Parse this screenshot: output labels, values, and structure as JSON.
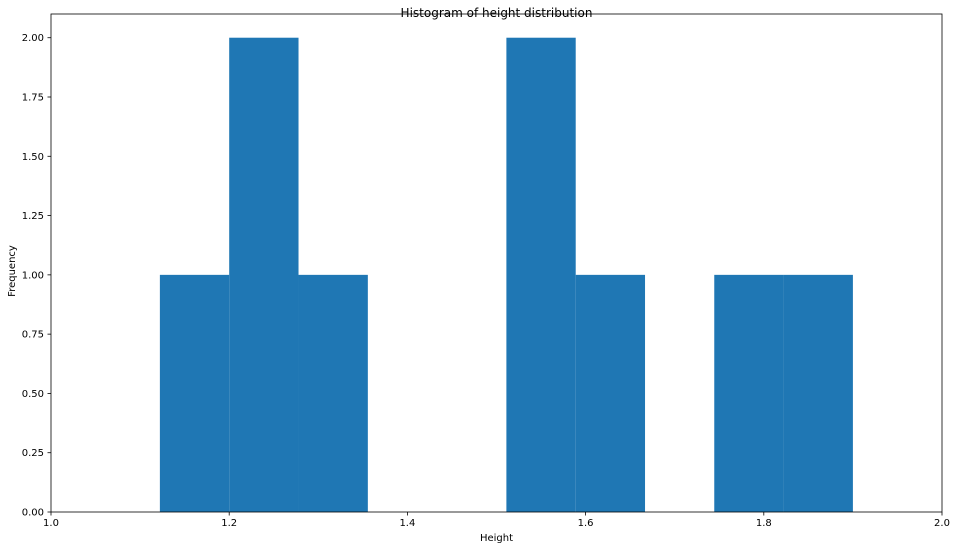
{
  "chart_data": {
    "type": "bar",
    "title": "Histogram of height distribution",
    "xlabel": "Height",
    "ylabel": "Frequency",
    "xlim": [
      1.0,
      2.0
    ],
    "ylim": [
      0.0,
      2.1
    ],
    "xticks": [
      "1.0",
      "1.2",
      "1.4",
      "1.6",
      "1.8",
      "2.0"
    ],
    "yticks": [
      "0.00",
      "0.25",
      "0.50",
      "0.75",
      "1.00",
      "1.25",
      "1.50",
      "1.75",
      "2.00"
    ],
    "bins": [
      {
        "x0": 1.1222,
        "x1": 1.2,
        "value": 1
      },
      {
        "x0": 1.2,
        "x1": 1.2778,
        "value": 2
      },
      {
        "x0": 1.2778,
        "x1": 1.3556,
        "value": 1
      },
      {
        "x0": 1.3556,
        "x1": 1.4333,
        "value": 0
      },
      {
        "x0": 1.4333,
        "x1": 1.5111,
        "value": 0
      },
      {
        "x0": 1.5111,
        "x1": 1.5889,
        "value": 2
      },
      {
        "x0": 1.5889,
        "x1": 1.6667,
        "value": 1
      },
      {
        "x0": 1.6667,
        "x1": 1.7444,
        "value": 0
      },
      {
        "x0": 1.7444,
        "x1": 1.8222,
        "value": 1
      },
      {
        "x0": 1.8222,
        "x1": 1.9,
        "value": 1
      }
    ],
    "bar_color": "#1f77b4",
    "grid": false,
    "legend": "none"
  }
}
